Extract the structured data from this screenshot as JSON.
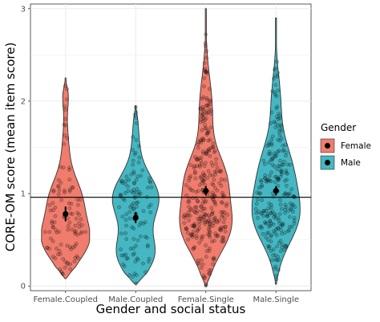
{
  "chart_data": {
    "type": "violin",
    "xlabel": "Gender and social status",
    "ylabel": "CORE-OM score (mean item score)",
    "categories": [
      "Female.Coupled",
      "Male.Coupled",
      "Female.Single",
      "Male.Single"
    ],
    "groups": [
      "Female",
      "Male",
      "Female",
      "Male"
    ],
    "ylim": [
      -0.05,
      3.05
    ],
    "yticks": [
      "0",
      "1",
      "2",
      "3"
    ],
    "yticks_values": [
      0,
      1,
      2,
      3
    ],
    "reference_line": 0.96,
    "means": [
      0.78,
      0.74,
      1.03,
      1.03
    ],
    "ci": [
      [
        0.7,
        0.86
      ],
      [
        0.68,
        0.8
      ],
      [
        0.98,
        1.08
      ],
      [
        0.98,
        1.08
      ]
    ],
    "ranges": [
      [
        0.08,
        2.25
      ],
      [
        0.02,
        1.95
      ],
      [
        0.0,
        3.0
      ],
      [
        0.02,
        2.9
      ]
    ],
    "grid": true,
    "legend": {
      "title": "Gender",
      "position": "right",
      "entries": [
        {
          "label": "Female",
          "color": "#f07c6d"
        },
        {
          "label": "Male",
          "color": "#45b7c2"
        }
      ]
    }
  },
  "colors": {
    "female": "#f07c6d",
    "male": "#45b7c2",
    "panel_bg": "#ffffff",
    "grid": "#ebebeb",
    "outline": "#333333"
  }
}
